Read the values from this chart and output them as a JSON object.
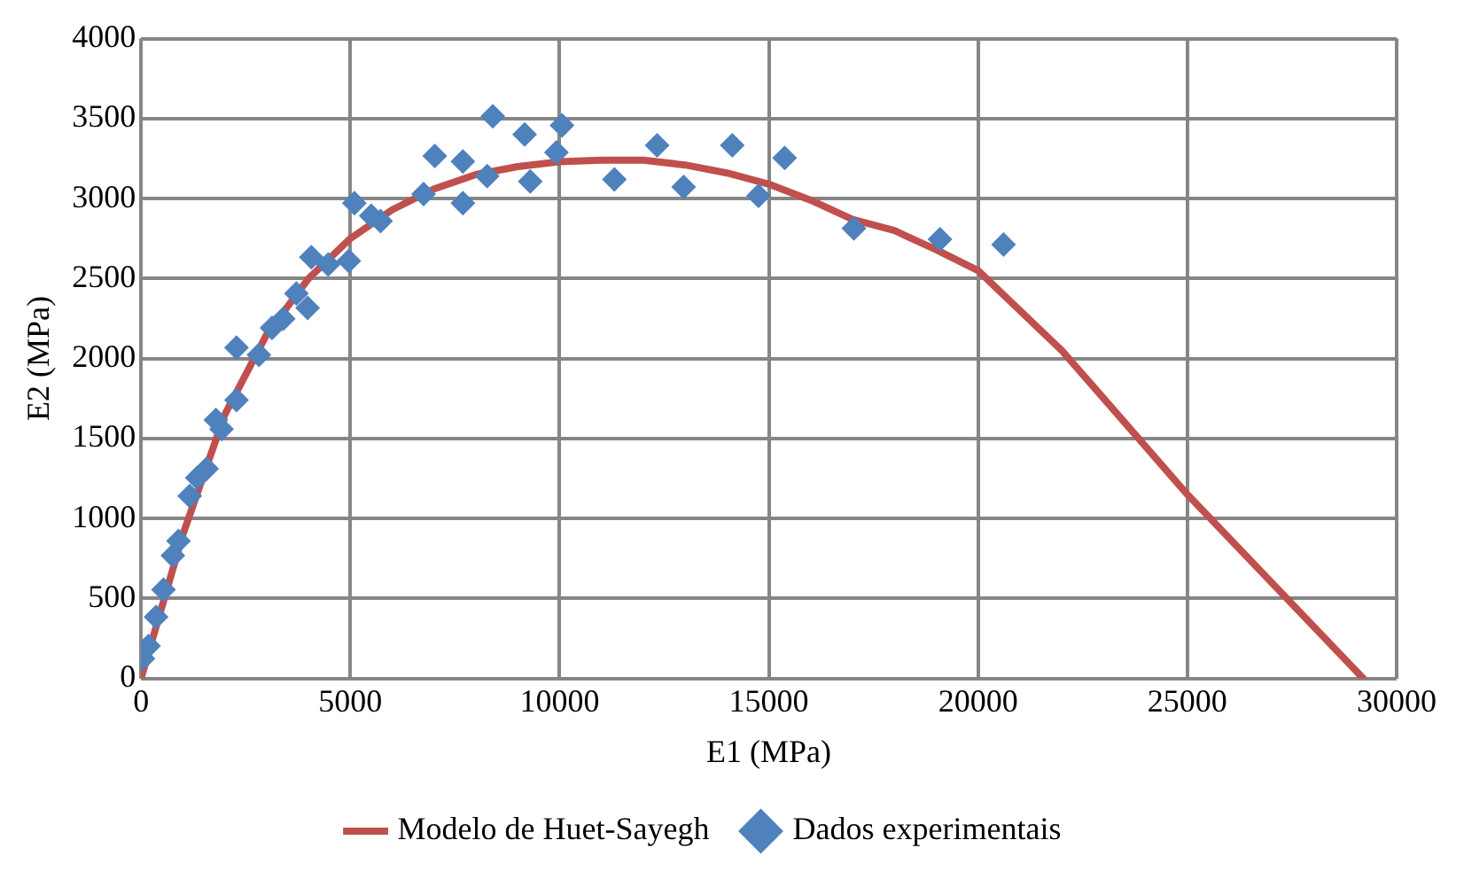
{
  "chart_data": {
    "type": "scatter",
    "xlabel": "E1 (MPa)",
    "ylabel": "E2 (MPa)",
    "xlim": [
      0,
      30000
    ],
    "xticks": [
      0,
      5000,
      10000,
      15000,
      20000,
      25000,
      30000
    ],
    "ylim": [
      0,
      4000
    ],
    "yticks": [
      0,
      500,
      1000,
      1500,
      2000,
      2500,
      3000,
      3500,
      4000
    ],
    "grid": true,
    "legend": "bottom",
    "series": [
      {
        "name": "Modelo de Huet-Sayegh",
        "type": "line",
        "color": "#c0504d",
        "marker": "none",
        "line_style": "solid",
        "x": [
          0,
          500,
          1000,
          2000,
          3000,
          4000,
          5000,
          6000,
          7000,
          8000,
          9000,
          10000,
          11000,
          12000,
          13000,
          14000,
          15000,
          16000,
          17000,
          18000,
          19000,
          20000,
          22000,
          25000,
          29200
        ],
        "values": [
          0,
          450,
          900,
          1650,
          2150,
          2500,
          2750,
          2930,
          3060,
          3150,
          3200,
          3230,
          3240,
          3240,
          3210,
          3160,
          3090,
          2990,
          2870,
          2800,
          2680,
          2550,
          2050,
          1150,
          0
        ]
      },
      {
        "name": "Dados experimentais",
        "type": "scatter",
        "color": "#4f81bd",
        "marker": "diamond",
        "x": [
          45,
          179,
          358,
          536,
          760,
          894,
          1162,
          1341,
          1565,
          1922,
          1788,
          2280,
          2280,
          2816,
          3129,
          3397,
          3710,
          3979,
          4068,
          4470,
          4962,
          5096,
          5498,
          5722,
          6750,
          7018,
          7689,
          7689,
          8270,
          8404,
          9164,
          9298,
          9924,
          10058,
          11310,
          12330,
          12964,
          14126,
          14752,
          15378,
          17032,
          19088,
          20608
        ],
        "values": [
          124,
          203,
          384,
          554,
          768,
          859,
          1141,
          1254,
          1311,
          1559,
          1616,
          1740,
          2068,
          2023,
          2192,
          2249,
          2407,
          2316,
          2633,
          2588,
          2610,
          2972,
          2893,
          2859,
          3028,
          3266,
          3232,
          2972,
          3141,
          3514,
          3401,
          3107,
          3288,
          3458,
          3119,
          3333,
          3073,
          3333,
          3017,
          3254,
          2814,
          2746,
          2712
        ]
      }
    ]
  }
}
